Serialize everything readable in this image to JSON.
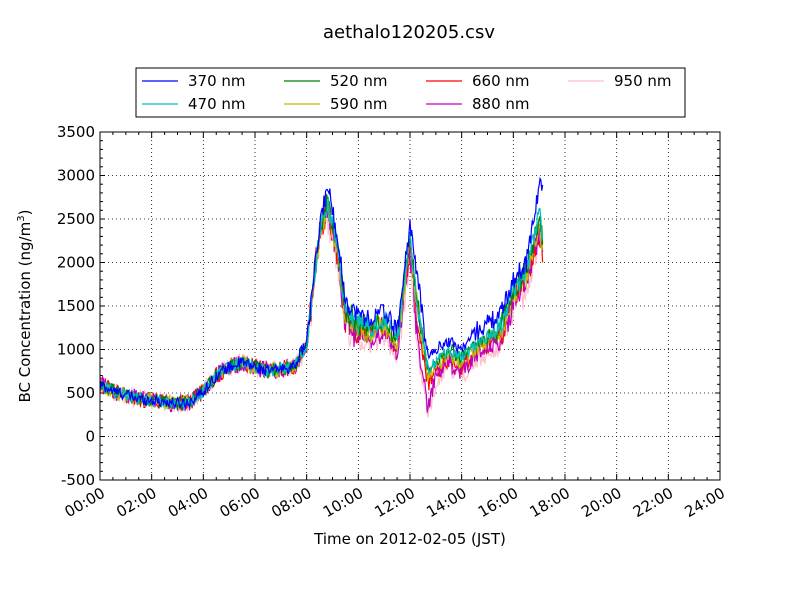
{
  "chart_data": {
    "type": "line",
    "title": "aethalo120205.csv",
    "xlabel": "Time on 2012-02-05 (JST)",
    "ylabel": "BC Concentration (ng/m",
    "ylabel_sup": "3",
    "ylabel_end": ")",
    "ylim": [
      -500,
      3500
    ],
    "yticks": [
      -500,
      0,
      500,
      1000,
      1500,
      2000,
      2500,
      3000,
      3500
    ],
    "xlim_hours": [
      0,
      24
    ],
    "xtick_hours": [
      0,
      2,
      4,
      6,
      8,
      10,
      12,
      14,
      16,
      18,
      20,
      22,
      24
    ],
    "xtick_labels": [
      "00:00",
      "02:00",
      "04:00",
      "06:00",
      "08:00",
      "10:00",
      "12:00",
      "14:00",
      "16:00",
      "18:00",
      "20:00",
      "22:00",
      "24:00"
    ],
    "grid": true,
    "legend_position": "top",
    "x_key_hours": [
      0,
      0.5,
      1,
      1.5,
      2,
      2.5,
      3,
      3.5,
      4,
      4.5,
      5,
      5.5,
      6,
      6.5,
      7,
      7.5,
      8,
      8.5,
      8.8,
      9.2,
      9.5,
      10,
      10.5,
      11,
      11.5,
      12,
      12.3,
      12.7,
      13,
      13.5,
      14,
      14.5,
      15,
      15.5,
      16,
      16.5,
      17,
      17.15
    ],
    "series": [
      {
        "name": "370 nm",
        "color": "#0000ff",
        "offset": 0,
        "key_values": [
          600,
          520,
          480,
          430,
          420,
          400,
          380,
          400,
          520,
          700,
          800,
          850,
          800,
          750,
          780,
          800,
          1100,
          2400,
          2900,
          2300,
          1550,
          1400,
          1350,
          1450,
          1200,
          2450,
          1800,
          900,
          1000,
          1100,
          1000,
          1200,
          1300,
          1400,
          1800,
          2000,
          2900,
          2850
        ]
      },
      {
        "name": "470 nm",
        "color": "#00bfbf",
        "offset": -60,
        "key_values": [
          600,
          520,
          480,
          430,
          420,
          400,
          380,
          400,
          520,
          700,
          800,
          850,
          800,
          750,
          780,
          800,
          1050,
          2350,
          2700,
          2200,
          1450,
          1300,
          1250,
          1350,
          1100,
          2300,
          1500,
          750,
          850,
          1000,
          900,
          1050,
          1150,
          1250,
          1700,
          1900,
          2600,
          2150
        ]
      },
      {
        "name": "520 nm",
        "color": "#008000",
        "offset": -40,
        "key_values": [
          600,
          520,
          480,
          430,
          420,
          400,
          380,
          400,
          520,
          700,
          800,
          850,
          800,
          750,
          780,
          800,
          1050,
          2350,
          2700,
          2200,
          1450,
          1300,
          1250,
          1350,
          1100,
          2300,
          1500,
          750,
          850,
          1000,
          900,
          1050,
          1150,
          1250,
          1700,
          1900,
          2500,
          2200
        ]
      },
      {
        "name": "590 nm",
        "color": "#bfbf00",
        "offset": -80,
        "key_values": [
          600,
          520,
          480,
          430,
          420,
          400,
          380,
          400,
          520,
          700,
          800,
          850,
          800,
          750,
          780,
          800,
          1050,
          2350,
          2650,
          2150,
          1400,
          1250,
          1200,
          1300,
          1050,
          2250,
          1450,
          700,
          800,
          950,
          850,
          1000,
          1100,
          1200,
          1650,
          1850,
          2450,
          2100
        ]
      },
      {
        "name": "660 nm",
        "color": "#ff0000",
        "offset": -90,
        "key_values": [
          600,
          520,
          480,
          430,
          420,
          400,
          380,
          400,
          520,
          700,
          800,
          850,
          800,
          750,
          780,
          800,
          1050,
          2350,
          2600,
          2100,
          1350,
          1200,
          1150,
          1250,
          1000,
          2200,
          1300,
          600,
          750,
          900,
          800,
          950,
          1050,
          1150,
          1600,
          1800,
          2400,
          2000
        ]
      },
      {
        "name": "880 nm",
        "color": "#bf00bf",
        "offset": -110,
        "key_values": [
          600,
          520,
          480,
          430,
          420,
          400,
          380,
          400,
          520,
          700,
          800,
          850,
          800,
          750,
          780,
          800,
          1050,
          2400,
          2650,
          2100,
          1300,
          1150,
          1100,
          1200,
          950,
          2150,
          1100,
          300,
          700,
          850,
          750,
          900,
          1000,
          1100,
          1550,
          1750,
          2350,
          2050
        ]
      },
      {
        "name": "950 nm",
        "color": "#ffc0cb",
        "offset": -150,
        "key_values": [
          600,
          520,
          480,
          430,
          420,
          400,
          380,
          400,
          520,
          700,
          800,
          850,
          800,
          750,
          780,
          800,
          1000,
          2300,
          2500,
          2000,
          1250,
          1100,
          1050,
          1150,
          900,
          2100,
          1000,
          200,
          650,
          800,
          700,
          850,
          950,
          1050,
          1500,
          1700,
          2300,
          1950
        ]
      }
    ]
  }
}
